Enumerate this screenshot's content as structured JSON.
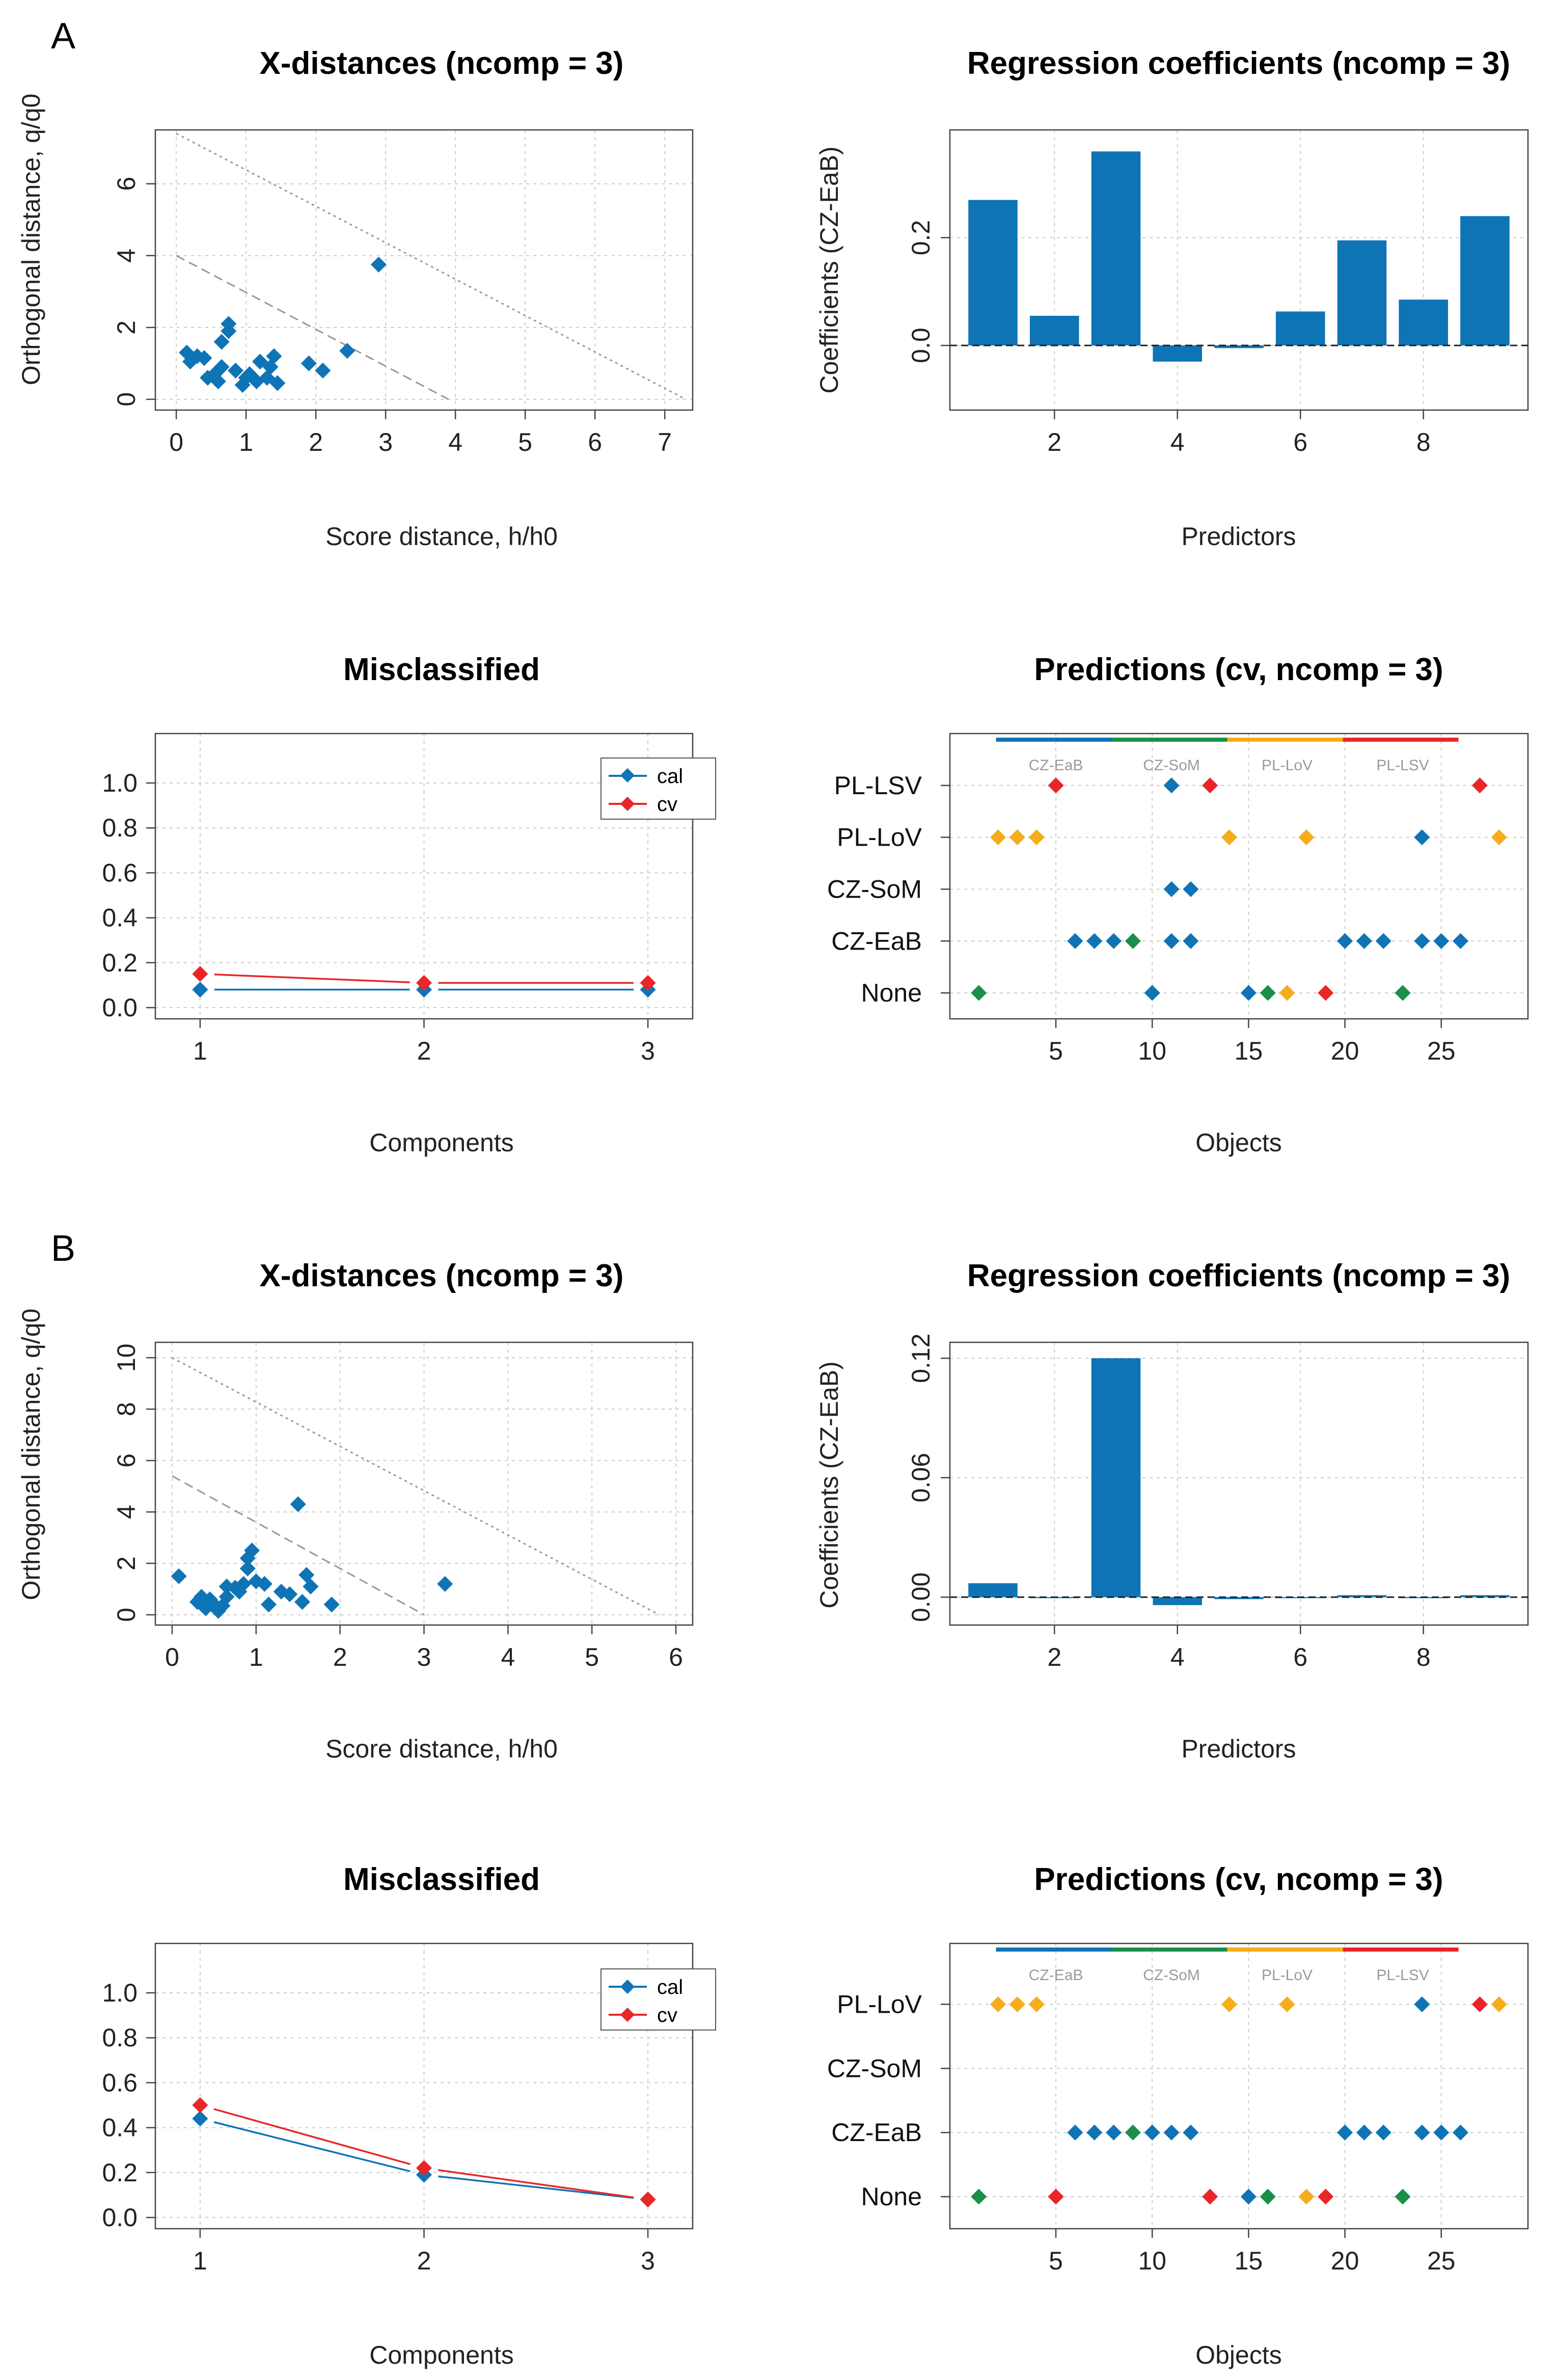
{
  "panels": [
    {
      "label": "A",
      "xdist": {
        "title": "X-distances (ncomp = 3)",
        "xlabel": "Score distance, h/h0",
        "ylabel": "Orthogonal distance, q/q0"
      },
      "regcoef": {
        "title": "Regression coefficients (ncomp = 3)",
        "xlabel": "Predictors",
        "ylabel": "Coefficients (CZ-EaB)"
      },
      "miscl": {
        "title": "Misclassified",
        "xlabel": "Components",
        "legend": [
          "cal",
          "cv"
        ]
      },
      "pred": {
        "title": "Predictions (cv, ncomp = 3)",
        "xlabel": "Objects",
        "groups": [
          "CZ-EaB",
          "CZ-SoM",
          "PL-LoV",
          "PL-LSV"
        ]
      }
    },
    {
      "label": "B",
      "xdist": {
        "title": "X-distances (ncomp = 3)",
        "xlabel": "Score distance, h/h0",
        "ylabel": "Orthogonal distance, q/q0"
      },
      "regcoef": {
        "title": "Regression coefficients (ncomp = 3)",
        "xlabel": "Predictors",
        "ylabel": "Coefficients (CZ-EaB)"
      },
      "miscl": {
        "title": "Misclassified",
        "xlabel": "Components",
        "legend": [
          "cal",
          "cv"
        ]
      },
      "pred": {
        "title": "Predictions (cv, ncomp = 3)",
        "xlabel": "Objects",
        "groups": [
          "CZ-EaB",
          "CZ-SoM",
          "PL-LoV",
          "PL-LSV"
        ]
      }
    }
  ],
  "colors": {
    "blue": "#0f74b5",
    "red": "#e8262a",
    "green": "#1b8f4a",
    "orange": "#f5ad1b",
    "grid": "#cccccc"
  },
  "chart_data": [
    {
      "panel": "A",
      "type": "scatter",
      "title": "X-distances (ncomp = 3)",
      "xlabel": "Score distance, h/h0",
      "ylabel": "Orthogonal distance, q/q0",
      "xlim": [
        -0.3,
        7.4
      ],
      "ylim": [
        -0.3,
        7.5
      ],
      "xticks": [
        0,
        1,
        2,
        3,
        4,
        5,
        6,
        7
      ],
      "yticks": [
        0,
        2,
        4,
        6
      ],
      "points": [
        [
          0.15,
          1.3
        ],
        [
          0.2,
          1.05
        ],
        [
          0.3,
          1.2
        ],
        [
          0.4,
          1.15
        ],
        [
          0.45,
          0.6
        ],
        [
          0.55,
          0.7
        ],
        [
          0.6,
          0.5
        ],
        [
          0.65,
          0.9
        ],
        [
          0.65,
          1.6
        ],
        [
          0.75,
          1.9
        ],
        [
          0.75,
          2.1
        ],
        [
          0.85,
          0.8
        ],
        [
          0.95,
          0.4
        ],
        [
          1.0,
          0.6
        ],
        [
          1.05,
          0.7
        ],
        [
          1.15,
          0.5
        ],
        [
          1.2,
          1.05
        ],
        [
          1.3,
          0.6
        ],
        [
          1.35,
          0.9
        ],
        [
          1.4,
          1.2
        ],
        [
          1.45,
          0.45
        ],
        [
          1.9,
          1.0
        ],
        [
          2.1,
          0.8
        ],
        [
          2.45,
          1.35
        ],
        [
          2.9,
          3.75
        ]
      ],
      "limit_lines": [
        {
          "x0": 3.9,
          "y0": 4.0
        },
        {
          "x0": 7.3,
          "y0": 7.4
        }
      ]
    },
    {
      "panel": "A",
      "type": "bar",
      "title": "Regression coefficients (ncomp = 3)",
      "xlabel": "Predictors",
      "ylabel": "Coefficients (CZ-EaB)",
      "categories": [
        1,
        2,
        3,
        4,
        5,
        6,
        7,
        8,
        9
      ],
      "values": [
        0.27,
        0.055,
        0.36,
        -0.03,
        -0.005,
        0.063,
        0.195,
        0.085,
        0.24
      ],
      "xlim": [
        0.3,
        9.7
      ],
      "ylim": [
        -0.12,
        0.4
      ],
      "xticks": [
        2,
        4,
        6,
        8
      ],
      "yticks": [
        0.0,
        0.2
      ],
      "yticklabels": [
        "0.0",
        "0.2"
      ]
    },
    {
      "panel": "A",
      "type": "line",
      "title": "Misclassified",
      "xlabel": "Components",
      "x": [
        1,
        2,
        3
      ],
      "series": [
        {
          "name": "cal",
          "values": [
            0.08,
            0.08,
            0.08
          ]
        },
        {
          "name": "cv",
          "values": [
            0.15,
            0.11,
            0.11
          ]
        }
      ],
      "xlim": [
        0.8,
        3.2
      ],
      "ylim": [
        -0.05,
        1.22
      ],
      "xticks": [
        1,
        2,
        3
      ],
      "yticks": [
        0.0,
        0.2,
        0.4,
        0.6,
        0.8,
        1.0
      ],
      "yticklabels": [
        "0.0",
        "0.2",
        "0.4",
        "0.6",
        "0.8",
        "1.0"
      ]
    },
    {
      "panel": "A",
      "type": "scatter",
      "title": "Predictions (cv, ncomp = 3)",
      "xlabel": "Objects",
      "ycategories": [
        "None",
        "CZ-EaB",
        "CZ-SoM",
        "PL-LoV",
        "PL-LSV"
      ],
      "xlim": [
        -0.5,
        29.5
      ],
      "xticks": [
        5,
        10,
        15,
        20,
        25
      ],
      "group_bars": [
        {
          "name": "CZ-EaB",
          "from": 2,
          "to": 8,
          "color": "blue"
        },
        {
          "name": "CZ-SoM",
          "from": 8,
          "to": 14,
          "color": "green"
        },
        {
          "name": "PL-LoV",
          "from": 14,
          "to": 20,
          "color": "orange"
        },
        {
          "name": "PL-LSV",
          "from": 20,
          "to": 26,
          "color": "red"
        }
      ],
      "points": [
        {
          "x": 5,
          "y": 4,
          "c": "red"
        },
        {
          "x": 11,
          "y": 4,
          "c": "blue"
        },
        {
          "x": 13,
          "y": 4,
          "c": "red"
        },
        {
          "x": 27,
          "y": 4,
          "c": "red"
        },
        {
          "x": 2,
          "y": 3,
          "c": "orange"
        },
        {
          "x": 3,
          "y": 3,
          "c": "orange"
        },
        {
          "x": 4,
          "y": 3,
          "c": "orange"
        },
        {
          "x": 14,
          "y": 3,
          "c": "orange"
        },
        {
          "x": 18,
          "y": 3,
          "c": "orange"
        },
        {
          "x": 24,
          "y": 3,
          "c": "blue"
        },
        {
          "x": 28,
          "y": 3,
          "c": "orange"
        },
        {
          "x": 11,
          "y": 2,
          "c": "blue"
        },
        {
          "x": 12,
          "y": 2,
          "c": "blue"
        },
        {
          "x": 6,
          "y": 1,
          "c": "blue"
        },
        {
          "x": 7,
          "y": 1,
          "c": "blue"
        },
        {
          "x": 8,
          "y": 1,
          "c": "blue"
        },
        {
          "x": 9,
          "y": 1,
          "c": "green"
        },
        {
          "x": 11,
          "y": 1,
          "c": "blue"
        },
        {
          "x": 12,
          "y": 1,
          "c": "blue"
        },
        {
          "x": 20,
          "y": 1,
          "c": "blue"
        },
        {
          "x": 21,
          "y": 1,
          "c": "blue"
        },
        {
          "x": 22,
          "y": 1,
          "c": "blue"
        },
        {
          "x": 24,
          "y": 1,
          "c": "blue"
        },
        {
          "x": 25,
          "y": 1,
          "c": "blue"
        },
        {
          "x": 26,
          "y": 1,
          "c": "blue"
        },
        {
          "x": 1,
          "y": 0,
          "c": "green"
        },
        {
          "x": 10,
          "y": 0,
          "c": "blue"
        },
        {
          "x": 15,
          "y": 0,
          "c": "blue"
        },
        {
          "x": 16,
          "y": 0,
          "c": "green"
        },
        {
          "x": 17,
          "y": 0,
          "c": "orange"
        },
        {
          "x": 19,
          "y": 0,
          "c": "red"
        },
        {
          "x": 23,
          "y": 0,
          "c": "green"
        }
      ]
    },
    {
      "panel": "B",
      "type": "scatter",
      "title": "X-distances (ncomp = 3)",
      "xlabel": "Score distance, h/h0",
      "ylabel": "Orthogonal distance, q/q0",
      "xlim": [
        -0.2,
        6.2
      ],
      "ylim": [
        -0.4,
        10.6
      ],
      "xticks": [
        0,
        1,
        2,
        3,
        4,
        5,
        6
      ],
      "yticks": [
        0,
        2,
        4,
        6,
        8,
        10
      ],
      "points": [
        [
          0.08,
          1.5
        ],
        [
          0.3,
          0.5
        ],
        [
          0.35,
          0.7
        ],
        [
          0.4,
          0.25
        ],
        [
          0.45,
          0.6
        ],
        [
          0.5,
          0.4
        ],
        [
          0.55,
          0.15
        ],
        [
          0.6,
          0.35
        ],
        [
          0.65,
          0.7
        ],
        [
          0.65,
          1.1
        ],
        [
          0.75,
          1.05
        ],
        [
          0.8,
          0.9
        ],
        [
          0.85,
          1.2
        ],
        [
          0.9,
          1.8
        ],
        [
          0.9,
          2.2
        ],
        [
          0.95,
          2.5
        ],
        [
          1.0,
          1.3
        ],
        [
          1.1,
          1.2
        ],
        [
          1.15,
          0.4
        ],
        [
          1.3,
          0.9
        ],
        [
          1.4,
          0.8
        ],
        [
          1.5,
          4.3
        ],
        [
          1.55,
          0.5
        ],
        [
          1.6,
          1.55
        ],
        [
          1.65,
          1.1
        ],
        [
          1.9,
          0.4
        ],
        [
          3.25,
          1.2
        ]
      ],
      "limit_lines": [
        {
          "x0": 3.0,
          "y0": 5.4
        },
        {
          "x0": 5.8,
          "y0": 10.0
        }
      ]
    },
    {
      "panel": "B",
      "type": "bar",
      "title": "Regression coefficients (ncomp = 3)",
      "xlabel": "Predictors",
      "ylabel": "Coefficients (CZ-EaB)",
      "categories": [
        1,
        2,
        3,
        4,
        5,
        6,
        7,
        8,
        9
      ],
      "values": [
        0.007,
        0.0,
        0.12,
        -0.004,
        -0.001,
        0.0,
        0.001,
        0.0,
        0.001
      ],
      "xlim": [
        0.3,
        9.7
      ],
      "ylim": [
        -0.014,
        0.128
      ],
      "xticks": [
        2,
        4,
        6,
        8
      ],
      "yticks": [
        0.0,
        0.06,
        0.12
      ],
      "yticklabels": [
        "0.00",
        "0.06",
        "0.12"
      ]
    },
    {
      "panel": "B",
      "type": "line",
      "title": "Misclassified",
      "xlabel": "Components",
      "x": [
        1,
        2,
        3
      ],
      "series": [
        {
          "name": "cal",
          "values": [
            0.44,
            0.19,
            0.08
          ]
        },
        {
          "name": "cv",
          "values": [
            0.5,
            0.22,
            0.08
          ]
        }
      ],
      "xlim": [
        0.8,
        3.2
      ],
      "ylim": [
        -0.05,
        1.22
      ],
      "xticks": [
        1,
        2,
        3
      ],
      "yticks": [
        0.0,
        0.2,
        0.4,
        0.6,
        0.8,
        1.0
      ],
      "yticklabels": [
        "0.0",
        "0.2",
        "0.4",
        "0.6",
        "0.8",
        "1.0"
      ]
    },
    {
      "panel": "B",
      "type": "scatter",
      "title": "Predictions (cv, ncomp = 3)",
      "xlabel": "Objects",
      "ycategories": [
        "None",
        "CZ-EaB",
        "CZ-SoM",
        "PL-LoV"
      ],
      "xlim": [
        -0.5,
        29.5
      ],
      "xticks": [
        5,
        10,
        15,
        20,
        25
      ],
      "group_bars": [
        {
          "name": "CZ-EaB",
          "from": 2,
          "to": 8,
          "color": "blue"
        },
        {
          "name": "CZ-SoM",
          "from": 8,
          "to": 14,
          "color": "green"
        },
        {
          "name": "PL-LoV",
          "from": 14,
          "to": 20,
          "color": "orange"
        },
        {
          "name": "PL-LSV",
          "from": 20,
          "to": 26,
          "color": "red"
        }
      ],
      "points": [
        {
          "x": 2,
          "y": 3,
          "c": "orange"
        },
        {
          "x": 3,
          "y": 3,
          "c": "orange"
        },
        {
          "x": 4,
          "y": 3,
          "c": "orange"
        },
        {
          "x": 14,
          "y": 3,
          "c": "orange"
        },
        {
          "x": 17,
          "y": 3,
          "c": "orange"
        },
        {
          "x": 24,
          "y": 3,
          "c": "blue"
        },
        {
          "x": 27,
          "y": 3,
          "c": "red"
        },
        {
          "x": 28,
          "y": 3,
          "c": "orange"
        },
        {
          "x": 6,
          "y": 1,
          "c": "blue"
        },
        {
          "x": 7,
          "y": 1,
          "c": "blue"
        },
        {
          "x": 8,
          "y": 1,
          "c": "blue"
        },
        {
          "x": 9,
          "y": 1,
          "c": "green"
        },
        {
          "x": 10,
          "y": 1,
          "c": "blue"
        },
        {
          "x": 11,
          "y": 1,
          "c": "blue"
        },
        {
          "x": 12,
          "y": 1,
          "c": "blue"
        },
        {
          "x": 20,
          "y": 1,
          "c": "blue"
        },
        {
          "x": 21,
          "y": 1,
          "c": "blue"
        },
        {
          "x": 22,
          "y": 1,
          "c": "blue"
        },
        {
          "x": 24,
          "y": 1,
          "c": "blue"
        },
        {
          "x": 25,
          "y": 1,
          "c": "blue"
        },
        {
          "x": 26,
          "y": 1,
          "c": "blue"
        },
        {
          "x": 1,
          "y": 0,
          "c": "green"
        },
        {
          "x": 5,
          "y": 0,
          "c": "red"
        },
        {
          "x": 13,
          "y": 0,
          "c": "red"
        },
        {
          "x": 15,
          "y": 0,
          "c": "blue"
        },
        {
          "x": 16,
          "y": 0,
          "c": "green"
        },
        {
          "x": 18,
          "y": 0,
          "c": "orange"
        },
        {
          "x": 19,
          "y": 0,
          "c": "red"
        },
        {
          "x": 23,
          "y": 0,
          "c": "green"
        }
      ]
    }
  ]
}
